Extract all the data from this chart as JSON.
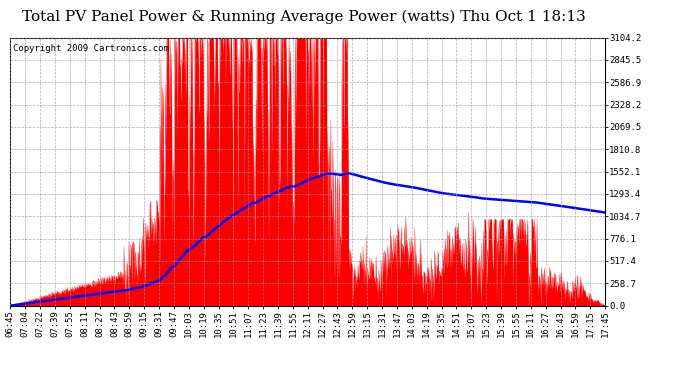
{
  "title": "Total PV Panel Power & Running Average Power (watts) Thu Oct 1 18:13",
  "copyright": "Copyright 2009 Cartronics.com",
  "y_ticks": [
    0.0,
    258.7,
    517.4,
    776.1,
    1034.7,
    1293.4,
    1552.1,
    1810.8,
    2069.5,
    2328.2,
    2586.9,
    2845.5,
    3104.2
  ],
  "x_labels": [
    "06:45",
    "07:04",
    "07:22",
    "07:39",
    "07:55",
    "08:11",
    "08:27",
    "08:43",
    "08:59",
    "09:15",
    "09:31",
    "09:47",
    "10:03",
    "10:19",
    "10:35",
    "10:51",
    "11:07",
    "11:23",
    "11:39",
    "11:55",
    "12:11",
    "12:27",
    "12:43",
    "12:59",
    "13:15",
    "13:31",
    "13:47",
    "14:03",
    "14:19",
    "14:35",
    "14:51",
    "15:07",
    "15:23",
    "15:39",
    "15:55",
    "16:11",
    "16:27",
    "16:43",
    "16:59",
    "17:15",
    "17:45"
  ],
  "background_color": "#ffffff",
  "plot_bg_color": "#ffffff",
  "area_color": "#ff0000",
  "line_color": "#0000ff",
  "grid_color": "#999999",
  "title_fontsize": 11,
  "copyright_fontsize": 6.5,
  "tick_fontsize": 6.5,
  "ymax": 3104.2,
  "ymin": 0.0,
  "total_minutes": 660
}
